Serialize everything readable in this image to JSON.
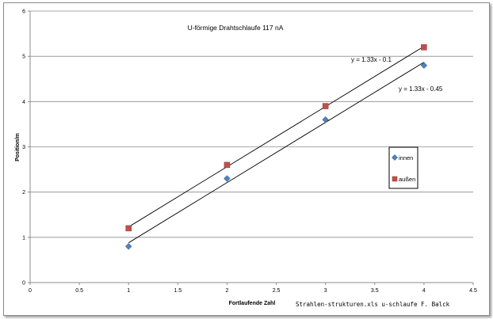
{
  "chart_data": {
    "type": "scatter",
    "title": "U-förmige Drahtschlaufe 117 nA",
    "xlabel": "Fortlaufende Zahl",
    "ylabel": "Position/m",
    "xlim": [
      0,
      4.5
    ],
    "ylim": [
      0,
      6
    ],
    "x_ticks": [
      "0",
      "0.5",
      "1",
      "1.5",
      "2",
      "2.5",
      "3",
      "3.5",
      "4",
      "4.5"
    ],
    "y_ticks": [
      "0",
      "1",
      "2",
      "3",
      "4",
      "5",
      "6"
    ],
    "grid": "horizontal",
    "legend_position": "right",
    "series": [
      {
        "name": "innen",
        "marker": "diamond",
        "color": "#4f81bd",
        "x": [
          1,
          2,
          3,
          4
        ],
        "y": [
          0.8,
          2.3,
          3.6,
          4.8
        ],
        "trendline": {
          "slope": 1.33,
          "intercept": -0.45,
          "label": "y = 1.33x - 0.45"
        }
      },
      {
        "name": "außen",
        "marker": "square",
        "color": "#c0504d",
        "x": [
          1,
          2,
          3,
          4
        ],
        "y": [
          1.2,
          2.6,
          3.9,
          5.2
        ],
        "trendline": {
          "slope": 1.33,
          "intercept": -0.1,
          "label": "y = 1.33x - 0.1"
        }
      }
    ],
    "footer": "Strahlen-strukturen.xls  u-schlaufe  F. Balck"
  }
}
